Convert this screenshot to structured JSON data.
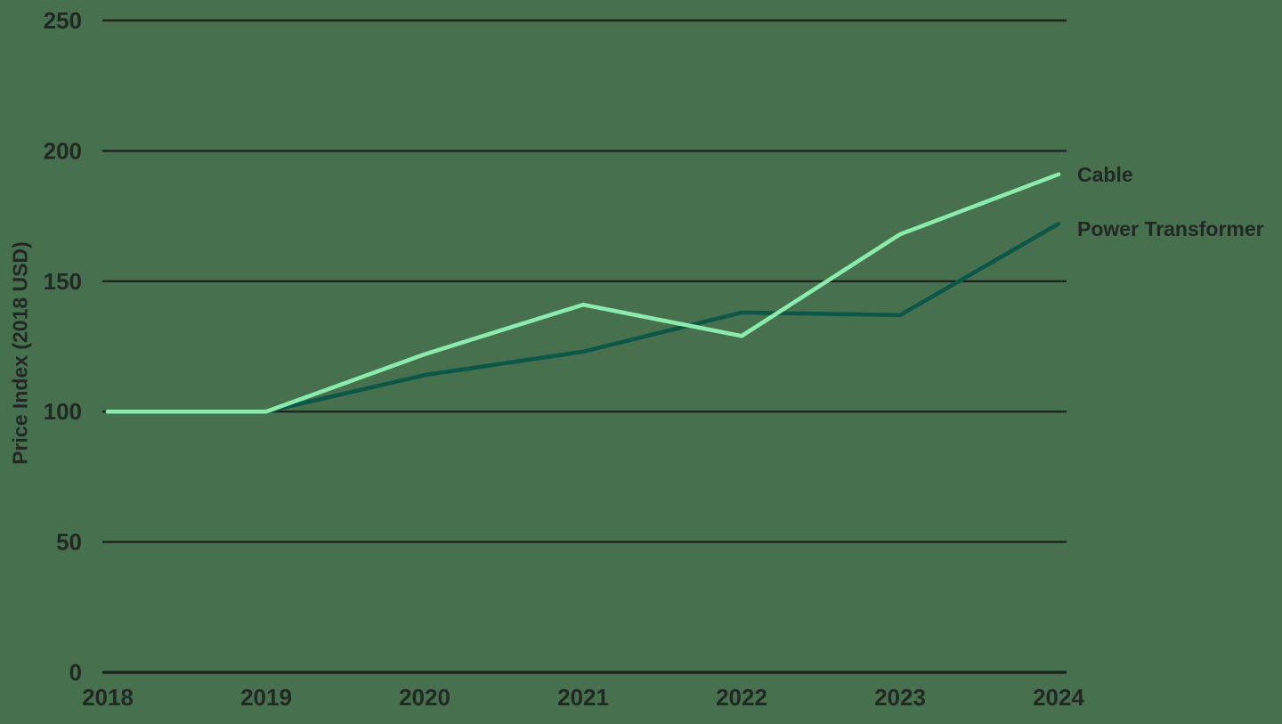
{
  "chart_data": {
    "type": "line",
    "title": "",
    "xlabel": "",
    "ylabel": "Price Index (2018 USD)",
    "x": [
      2018,
      2019,
      2020,
      2021,
      2022,
      2023,
      2024
    ],
    "series": [
      {
        "name": "Cable",
        "color": "#8BEBAD",
        "values": [
          100,
          100,
          122,
          141,
          129,
          168,
          191
        ]
      },
      {
        "name": "Power Transformer",
        "color": "#0D5748",
        "values": [
          100,
          100,
          114,
          123,
          138,
          137,
          172
        ]
      }
    ],
    "ylim": [
      0,
      250
    ],
    "yticks": [
      0,
      50,
      100,
      150,
      200,
      250
    ],
    "grid": "horizontal",
    "legend_position": "right-end-labels",
    "colors": {
      "background": "#47704E",
      "gridline": "#1E2420",
      "text": "#232825"
    }
  }
}
